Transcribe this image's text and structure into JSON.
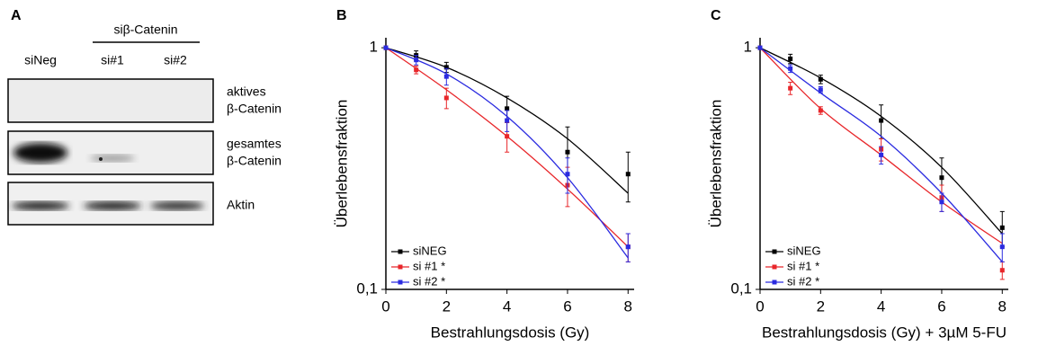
{
  "blot": {
    "panel": "A",
    "group_label": "siβ-Catenin",
    "lanes": [
      "siNeg",
      "si#1",
      "si#2"
    ],
    "rows": [
      [
        "aktives",
        "β-Catenin"
      ],
      [
        "gesamtes",
        "β-Catenin"
      ],
      [
        "Aktin"
      ]
    ]
  },
  "chart_data": [
    {
      "type": "line",
      "panel": "B",
      "xlabel": "Bestrahlungsdosis (Gy)",
      "ylabel": "Überlebensfraktion",
      "log_y": true,
      "xlim": [
        0,
        8.2
      ],
      "ylim": [
        0.1,
        1.1
      ],
      "xticks": [
        0,
        2,
        4,
        6,
        8
      ],
      "yticks": [
        {
          "value": 0.1,
          "label": "0,1"
        },
        1
      ],
      "legend": "lower left",
      "x": [
        0,
        1,
        2,
        4,
        6,
        8
      ],
      "fit_x": [
        0,
        2,
        4,
        6,
        8
      ],
      "series": [
        {
          "name": "siNEG",
          "color": "#000000",
          "values": [
            1,
            0.93,
            0.83,
            0.56,
            0.37,
            0.3
          ],
          "errors": [
            0,
            0.04,
            0.04,
            0.07,
            0.1,
            0.07
          ],
          "fit": [
            1,
            0.83,
            0.62,
            0.42,
            0.25
          ]
        },
        {
          "name": "si #1 *",
          "color": "#e8262a",
          "values": [
            1,
            0.81,
            0.62,
            0.43,
            0.27,
            0.15
          ],
          "errors": [
            0,
            0.03,
            0.06,
            0.06,
            0.05,
            0.02
          ],
          "fit": [
            1,
            0.67,
            0.43,
            0.26,
            0.15
          ]
        },
        {
          "name": "si #2 *",
          "color": "#2b2be0",
          "values": [
            1,
            0.89,
            0.76,
            0.5,
            0.3,
            0.15
          ],
          "errors": [
            0,
            0.04,
            0.06,
            0.05,
            0.05,
            0.02
          ],
          "fit": [
            1,
            0.78,
            0.52,
            0.29,
            0.135
          ]
        }
      ]
    },
    {
      "type": "line",
      "panel": "C",
      "xlabel": "Bestrahlungsdosis (Gy) + 3µM 5-FU",
      "ylabel": "Überlebensfraktion",
      "log_y": true,
      "xlim": [
        0,
        8.2
      ],
      "ylim": [
        0.1,
        1.1
      ],
      "xticks": [
        0,
        2,
        4,
        6,
        8
      ],
      "yticks": [
        {
          "value": 0.1,
          "label": "0,1"
        },
        1
      ],
      "legend": "lower left",
      "x": [
        0,
        1,
        2,
        4,
        6,
        8
      ],
      "fit_x": [
        0,
        2,
        4,
        6,
        8
      ],
      "series": [
        {
          "name": "siNEG",
          "color": "#000000",
          "values": [
            1,
            0.9,
            0.74,
            0.5,
            0.29,
            0.18
          ],
          "errors": [
            0,
            0.04,
            0.03,
            0.08,
            0.06,
            0.03
          ],
          "fit": [
            1,
            0.75,
            0.52,
            0.32,
            0.17
          ]
        },
        {
          "name": "si #1 *",
          "color": "#e8262a",
          "values": [
            1,
            0.68,
            0.55,
            0.38,
            0.24,
            0.12
          ],
          "errors": [
            0,
            0.04,
            0.02,
            0.04,
            0.03,
            0.01
          ],
          "fit": [
            1,
            0.56,
            0.36,
            0.23,
            0.155
          ]
        },
        {
          "name": "si #2 *",
          "color": "#2b2be0",
          "values": [
            1,
            0.82,
            0.67,
            0.36,
            0.23,
            0.15
          ],
          "errors": [
            0,
            0.03,
            0.02,
            0.03,
            0.02,
            0.02
          ],
          "fit": [
            1,
            0.65,
            0.43,
            0.25,
            0.13
          ]
        }
      ]
    }
  ]
}
